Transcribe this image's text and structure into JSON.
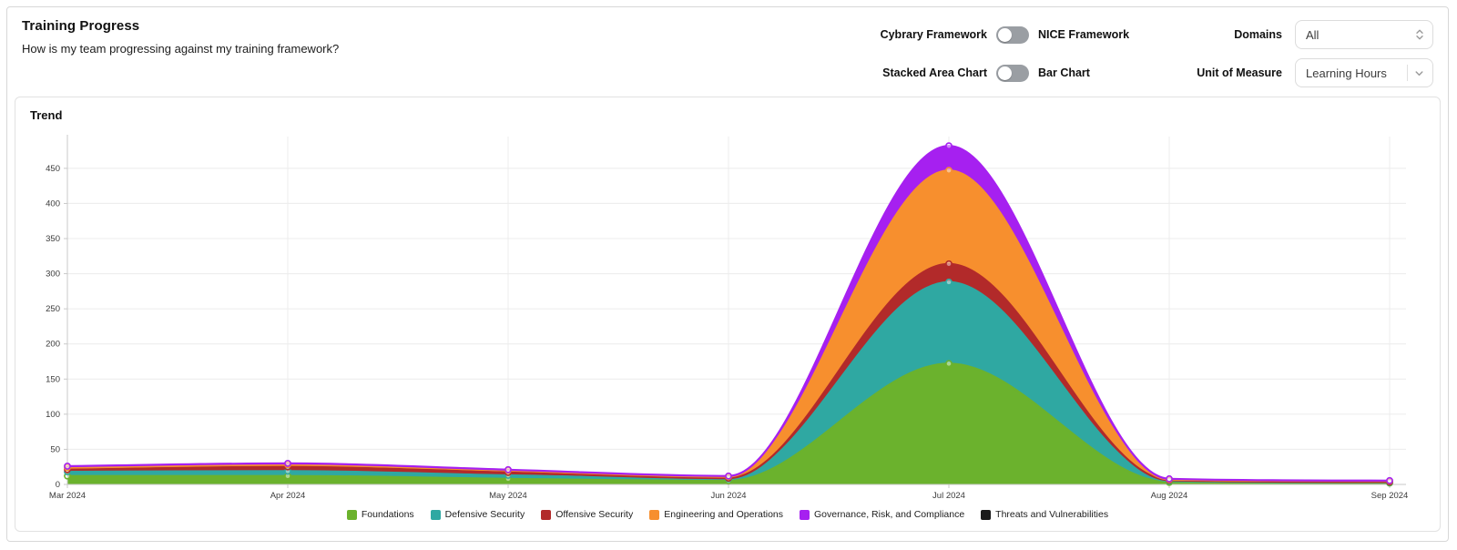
{
  "header": {
    "title": "Training Progress",
    "subtitle": "How is my team progressing against my training framework?"
  },
  "controls": {
    "framework_toggle": {
      "left_label": "Cybrary Framework",
      "right_label": "NICE Framework",
      "state": "left"
    },
    "chart_toggle": {
      "left_label": "Stacked Area Chart",
      "right_label": "Bar Chart",
      "state": "left"
    },
    "domains": {
      "label": "Domains",
      "value": "All",
      "icon": "up-down-stepper-icon"
    },
    "unit_of_measure": {
      "label": "Unit of Measure",
      "value": "Learning Hours",
      "icon": "chevron-down-icon"
    }
  },
  "trend": {
    "section_title": "Trend"
  },
  "chart_data": {
    "type": "area",
    "stacked": true,
    "title": "Trend",
    "unit": "Learning Hours",
    "x": [
      "Mar 2024",
      "Apr 2024",
      "May 2024",
      "Jun 2024",
      "Jul 2024",
      "Aug 2024",
      "Sep 2024"
    ],
    "ylim": [
      0,
      490
    ],
    "ytick_step": 50,
    "grid": true,
    "legend_position": "bottom",
    "series": [
      {
        "name": "Foundations",
        "color": "#6bb22d",
        "values": [
          12,
          12,
          8,
          5,
          172,
          3,
          2
        ]
      },
      {
        "name": "Defensive Security",
        "color": "#2fa8a2",
        "values": [
          6,
          7,
          5,
          3,
          116,
          2,
          1
        ]
      },
      {
        "name": "Offensive Security",
        "color": "#b22a2a",
        "values": [
          3,
          6,
          4,
          1,
          26,
          1,
          0.5
        ]
      },
      {
        "name": "Engineering and Operations",
        "color": "#f78f2e",
        "values": [
          3,
          3,
          3,
          2,
          133,
          1,
          1.5
        ]
      },
      {
        "name": "Governance, Risk, and Compliance",
        "color": "#a620f0",
        "values": [
          2,
          2,
          1,
          1,
          35,
          1,
          0.5
        ]
      },
      {
        "name": "Threats and Vulnerabilities",
        "color": "#1a1a1a",
        "values": [
          0,
          0,
          0,
          0,
          0,
          0,
          0
        ]
      }
    ],
    "axis_colors": {
      "grid": "#ececec",
      "axis": "#c9c9c9",
      "tick_text": "#3a3a3a"
    }
  }
}
